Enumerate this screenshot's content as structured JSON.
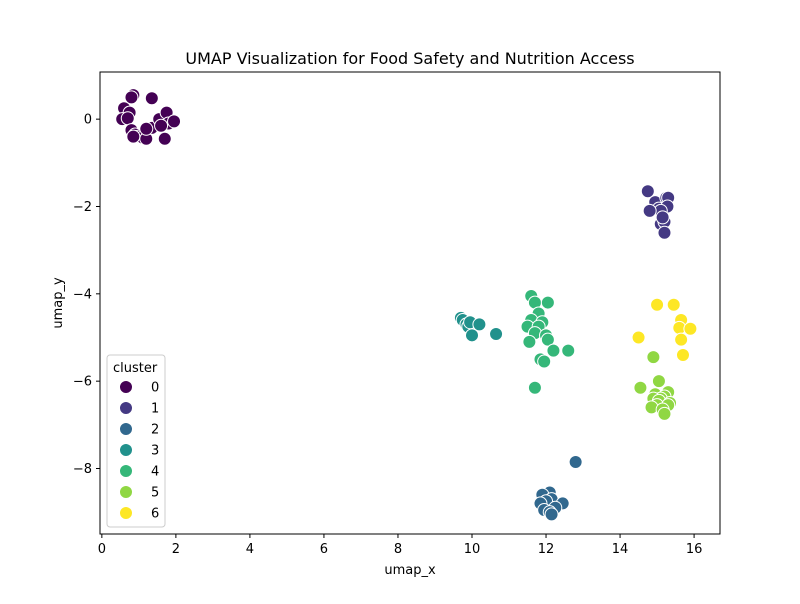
{
  "chart_data": {
    "type": "scatter",
    "title": "UMAP Visualization for Food Safety and Nutrition Access",
    "xlabel": "umap_x",
    "ylabel": "umap_y",
    "xlim": [
      -0.05,
      16.7
    ],
    "ylim": [
      -9.5,
      1.08
    ],
    "x_ticks": [
      0,
      2,
      4,
      6,
      8,
      10,
      12,
      14,
      16
    ],
    "y_ticks": [
      0,
      -2,
      -4,
      -6,
      -8
    ],
    "grid": false,
    "legend": {
      "title": "cluster",
      "placement": "lower-left"
    },
    "series": [
      {
        "name": "0",
        "color": "#440154",
        "points": [
          [
            0.85,
            0.55
          ],
          [
            0.8,
            0.5
          ],
          [
            0.6,
            0.25
          ],
          [
            0.75,
            0.15
          ],
          [
            0.55,
            0.0
          ],
          [
            0.7,
            0.02
          ],
          [
            0.8,
            -0.25
          ],
          [
            0.9,
            -0.35
          ],
          [
            1.0,
            -0.4
          ],
          [
            1.1,
            -0.42
          ],
          [
            1.2,
            -0.45
          ],
          [
            1.35,
            -0.2
          ],
          [
            1.2,
            -0.22
          ],
          [
            1.35,
            0.48
          ],
          [
            1.55,
            0.0
          ],
          [
            1.75,
            0.15
          ],
          [
            1.8,
            -0.1
          ],
          [
            1.95,
            -0.05
          ],
          [
            1.7,
            -0.45
          ],
          [
            1.6,
            -0.15
          ],
          [
            0.85,
            -0.4
          ]
        ]
      },
      {
        "name": "1",
        "color": "#443983",
        "points": [
          [
            14.75,
            -1.65
          ],
          [
            14.95,
            -1.9
          ],
          [
            15.05,
            -2.05
          ],
          [
            15.25,
            -1.8
          ],
          [
            15.3,
            -1.8
          ],
          [
            15.28,
            -2.0
          ],
          [
            15.1,
            -2.1
          ],
          [
            14.8,
            -2.1
          ],
          [
            15.1,
            -2.4
          ],
          [
            15.2,
            -2.35
          ],
          [
            15.2,
            -2.6
          ],
          [
            15.15,
            -2.25
          ]
        ]
      },
      {
        "name": "2",
        "color": "#31688e",
        "points": [
          [
            12.8,
            -7.85
          ],
          [
            12.1,
            -8.55
          ],
          [
            11.9,
            -8.6
          ],
          [
            12.15,
            -8.7
          ],
          [
            12.0,
            -8.75
          ],
          [
            11.85,
            -8.8
          ],
          [
            12.45,
            -8.8
          ],
          [
            12.25,
            -8.9
          ],
          [
            11.95,
            -8.95
          ],
          [
            12.1,
            -9.0
          ],
          [
            12.15,
            -9.05
          ]
        ]
      },
      {
        "name": "3",
        "color": "#21918c",
        "points": [
          [
            9.7,
            -4.55
          ],
          [
            9.75,
            -4.6
          ],
          [
            9.85,
            -4.7
          ],
          [
            9.9,
            -4.75
          ],
          [
            9.95,
            -4.65
          ],
          [
            10.2,
            -4.7
          ],
          [
            10.0,
            -4.95
          ],
          [
            10.65,
            -4.92
          ]
        ]
      },
      {
        "name": "4",
        "color": "#35b779",
        "points": [
          [
            11.6,
            -4.05
          ],
          [
            11.7,
            -4.2
          ],
          [
            12.05,
            -4.2
          ],
          [
            11.8,
            -4.45
          ],
          [
            11.6,
            -4.6
          ],
          [
            11.9,
            -4.65
          ],
          [
            11.5,
            -4.75
          ],
          [
            11.8,
            -4.75
          ],
          [
            11.7,
            -4.9
          ],
          [
            12.0,
            -4.95
          ],
          [
            12.05,
            -5.05
          ],
          [
            11.55,
            -5.1
          ],
          [
            12.2,
            -5.3
          ],
          [
            12.6,
            -5.3
          ],
          [
            11.85,
            -5.5
          ],
          [
            11.95,
            -5.55
          ],
          [
            11.7,
            -6.15
          ]
        ]
      },
      {
        "name": "5",
        "color": "#90d743",
        "points": [
          [
            14.9,
            -5.45
          ],
          [
            15.05,
            -6.0
          ],
          [
            14.55,
            -6.15
          ],
          [
            15.3,
            -6.25
          ],
          [
            14.95,
            -6.3
          ],
          [
            15.2,
            -6.35
          ],
          [
            15.1,
            -6.4
          ],
          [
            14.9,
            -6.4
          ],
          [
            15.05,
            -6.45
          ],
          [
            15.35,
            -6.5
          ],
          [
            15.0,
            -6.55
          ],
          [
            15.3,
            -6.55
          ],
          [
            14.85,
            -6.6
          ],
          [
            15.15,
            -6.65
          ],
          [
            15.2,
            -6.75
          ]
        ]
      },
      {
        "name": "6",
        "color": "#fde725",
        "points": [
          [
            15.0,
            -4.25
          ],
          [
            15.45,
            -4.25
          ],
          [
            15.65,
            -4.6
          ],
          [
            15.6,
            -4.78
          ],
          [
            15.9,
            -4.8
          ],
          [
            14.5,
            -5.0
          ],
          [
            15.65,
            -5.05
          ],
          [
            15.7,
            -5.4
          ]
        ]
      }
    ]
  }
}
